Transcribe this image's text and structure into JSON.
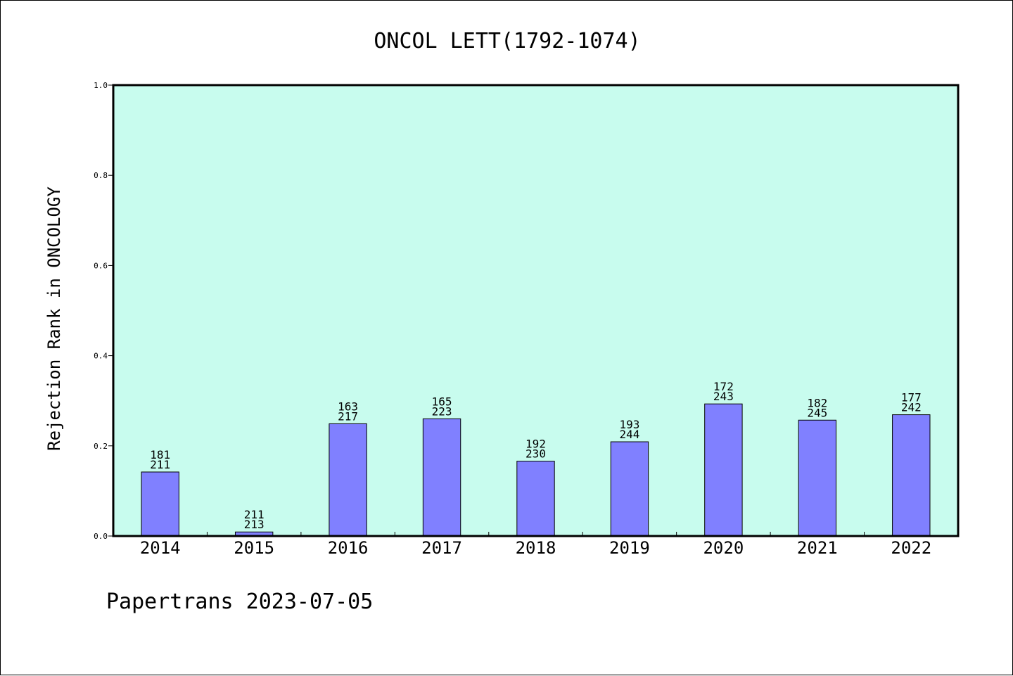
{
  "chart_data": {
    "type": "bar",
    "title": "ONCOL LETT(1792-1074)",
    "xlabel": "",
    "ylabel": "Rejection Rank in ONCOLOGY",
    "ylim": [
      0,
      1.0
    ],
    "yticks": [
      "0.0",
      "0.2",
      "0.4",
      "0.6",
      "0.8",
      "1.0"
    ],
    "ytick_values": [
      0,
      0.2,
      0.4,
      0.6,
      0.8,
      1.0
    ],
    "grid": false,
    "categories": [
      "2014",
      "2015",
      "2016",
      "2017",
      "2018",
      "2019",
      "2020",
      "2021",
      "2022"
    ],
    "values": [
      0.142,
      0.009,
      0.249,
      0.26,
      0.166,
      0.209,
      0.293,
      0.257,
      0.269
    ],
    "label_top": [
      "181",
      "211",
      "163",
      "165",
      "192",
      "193",
      "172",
      "182",
      "177"
    ],
    "label_bottom": [
      "211",
      "213",
      "217",
      "223",
      "230",
      "244",
      "243",
      "245",
      "242"
    ],
    "colors": {
      "plot_background": "#c8fcee",
      "bar": "#8080ff",
      "bar_edge": "#000000"
    }
  },
  "footer": {
    "text": "Papertrans 2023-07-05"
  }
}
